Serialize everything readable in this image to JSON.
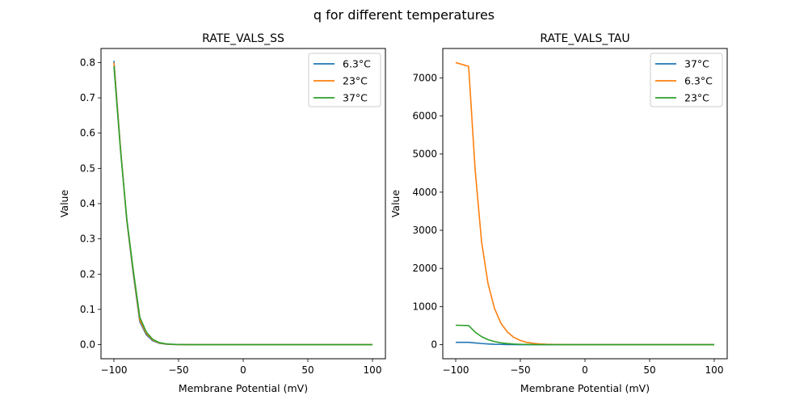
{
  "suptitle": "q for different temperatures",
  "colors": {
    "c0": "#1f77b4",
    "c1": "#ff7f0e",
    "c2": "#2ca02c"
  },
  "chart_data": [
    {
      "type": "line",
      "title": "RATE_VALS_SS",
      "xlabel": "Membrane Potential (mV)",
      "ylabel": "Value",
      "xlim": [
        -110,
        110
      ],
      "ylim": [
        -0.04,
        0.84
      ],
      "xticks": [
        -100,
        -50,
        0,
        50,
        100
      ],
      "xtick_labels": [
        "−100",
        "−50",
        "0",
        "50",
        "100"
      ],
      "yticks": [
        0.0,
        0.1,
        0.2,
        0.3,
        0.4,
        0.5,
        0.6,
        0.7,
        0.8
      ],
      "ytick_labels": [
        "0.0",
        "0.1",
        "0.2",
        "0.3",
        "0.4",
        "0.5",
        "0.6",
        "0.7",
        "0.8"
      ],
      "legend_position": "top-right",
      "x": [
        -100,
        -95,
        -90,
        -85,
        -80,
        -75,
        -70,
        -65,
        -60,
        -55,
        -50,
        -40,
        -30,
        -20,
        0,
        50,
        100
      ],
      "series": [
        {
          "name": "6.3°C",
          "color": "#1f77b4",
          "values": [
            0.805,
            0.56,
            0.35,
            0.2,
            0.065,
            0.028,
            0.011,
            0.004,
            0.0015,
            0.0005,
            0.0002,
            0,
            0,
            0,
            0,
            0,
            0
          ]
        },
        {
          "name": "23°C",
          "color": "#ff7f0e",
          "values": [
            0.8,
            0.56,
            0.352,
            0.205,
            0.07,
            0.032,
            0.013,
            0.005,
            0.002,
            0.0007,
            0.0003,
            0,
            0,
            0,
            0,
            0,
            0
          ]
        },
        {
          "name": "37°C",
          "color": "#2ca02c",
          "values": [
            0.79,
            0.555,
            0.355,
            0.21,
            0.078,
            0.036,
            0.015,
            0.006,
            0.0025,
            0.001,
            0.0004,
            0,
            0,
            0,
            0,
            0,
            0
          ]
        }
      ]
    },
    {
      "type": "line",
      "title": "RATE_VALS_TAU",
      "xlabel": "Membrane Potential (mV)",
      "ylabel": "Value",
      "xlim": [
        -110,
        110
      ],
      "ylim": [
        -370,
        7770
      ],
      "xticks": [
        -100,
        -50,
        0,
        50,
        100
      ],
      "xtick_labels": [
        "−100",
        "−50",
        "0",
        "50",
        "100"
      ],
      "yticks": [
        0,
        1000,
        2000,
        3000,
        4000,
        5000,
        6000,
        7000
      ],
      "ytick_labels": [
        "0",
        "1000",
        "2000",
        "3000",
        "4000",
        "5000",
        "6000",
        "7000"
      ],
      "legend_position": "top-right",
      "x": [
        -100,
        -90,
        -85,
        -80,
        -75,
        -70,
        -65,
        -60,
        -55,
        -50,
        -45,
        -40,
        -35,
        -30,
        -20,
        0,
        50,
        100
      ],
      "series": [
        {
          "name": "37°C",
          "color": "#1f77b4",
          "values": [
            60,
            60,
            45,
            30,
            18,
            10,
            6,
            3,
            1,
            0.5,
            0,
            0,
            0,
            0,
            0,
            0,
            0,
            0
          ]
        },
        {
          "name": "6.3°C",
          "color": "#ff7f0e",
          "values": [
            7400,
            7300,
            4600,
            2700,
            1600,
            950,
            560,
            330,
            190,
            110,
            60,
            35,
            18,
            10,
            3,
            0,
            0,
            0
          ]
        },
        {
          "name": "23°C",
          "color": "#2ca02c",
          "values": [
            510,
            500,
            330,
            210,
            130,
            80,
            48,
            28,
            16,
            9,
            5,
            3,
            1,
            0,
            0,
            0,
            0,
            0
          ]
        }
      ]
    }
  ]
}
